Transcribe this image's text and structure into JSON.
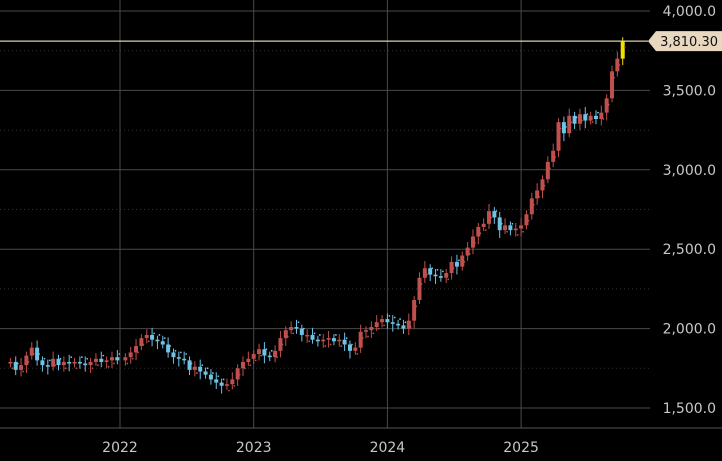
{
  "chart_data": {
    "type": "candlestick",
    "title": "",
    "xlabel": "",
    "ylabel": "",
    "ylim": [
      1400,
      4010
    ],
    "xlim": [
      2021.18,
      2025.93
    ],
    "grid": true,
    "y_axis_position": "right",
    "y_ticks": [
      1500,
      2000,
      2500,
      3000,
      3500,
      4000
    ],
    "y_tick_labels": [
      "1,500.0",
      "2,000.0",
      "2,500.0",
      "3,000.0",
      "3,500.0",
      "4,000.0"
    ],
    "x_ticks": [
      2022,
      2023,
      2024,
      2025
    ],
    "x_tick_labels": [
      "2022",
      "2023",
      "2024",
      "2025"
    ],
    "last_price": 3810.3,
    "last_price_label": "3,810.30",
    "colors": {
      "background": "#000000",
      "up": "#c0504d",
      "down": "#6fc3e6",
      "grid": "#4a4a4a",
      "last_price_line": "#d9d2a0",
      "last_price_tag": "#e8d8bf",
      "last_candle": "#f0e000",
      "axis_text": "#c8c8c8"
    },
    "series": [
      {
        "values": [
          [
            2021.18,
            1790
          ],
          [
            2021.22,
            1740
          ],
          [
            2021.26,
            1770
          ],
          [
            2021.3,
            1830
          ],
          [
            2021.34,
            1880
          ],
          [
            2021.38,
            1800
          ],
          [
            2021.42,
            1770
          ],
          [
            2021.46,
            1760
          ],
          [
            2021.5,
            1810
          ],
          [
            2021.54,
            1770
          ],
          [
            2021.58,
            1790
          ],
          [
            2021.62,
            1780
          ],
          [
            2021.66,
            1790
          ],
          [
            2021.7,
            1780
          ],
          [
            2021.74,
            1770
          ],
          [
            2021.78,
            1790
          ],
          [
            2021.82,
            1810
          ],
          [
            2021.86,
            1790
          ],
          [
            2021.9,
            1800
          ],
          [
            2021.94,
            1820
          ],
          [
            2021.98,
            1800
          ],
          [
            2022.04,
            1820
          ],
          [
            2022.08,
            1850
          ],
          [
            2022.12,
            1890
          ],
          [
            2022.16,
            1940
          ],
          [
            2022.2,
            1960
          ],
          [
            2022.24,
            1930
          ],
          [
            2022.28,
            1920
          ],
          [
            2022.32,
            1900
          ],
          [
            2022.36,
            1850
          ],
          [
            2022.4,
            1820
          ],
          [
            2022.44,
            1810
          ],
          [
            2022.48,
            1800
          ],
          [
            2022.52,
            1740
          ],
          [
            2022.56,
            1760
          ],
          [
            2022.6,
            1730
          ],
          [
            2022.64,
            1710
          ],
          [
            2022.68,
            1680
          ],
          [
            2022.72,
            1660
          ],
          [
            2022.76,
            1640
          ],
          [
            2022.8,
            1650
          ],
          [
            2022.84,
            1680
          ],
          [
            2022.88,
            1750
          ],
          [
            2022.92,
            1790
          ],
          [
            2022.96,
            1810
          ],
          [
            2023.0,
            1840
          ],
          [
            2023.04,
            1870
          ],
          [
            2023.08,
            1830
          ],
          [
            2023.12,
            1820
          ],
          [
            2023.16,
            1860
          ],
          [
            2023.2,
            1940
          ],
          [
            2023.24,
            1990
          ],
          [
            2023.28,
            2010
          ],
          [
            2023.32,
            2000
          ],
          [
            2023.36,
            1960
          ],
          [
            2023.4,
            1960
          ],
          [
            2023.44,
            1930
          ],
          [
            2023.48,
            1920
          ],
          [
            2023.52,
            1930
          ],
          [
            2023.56,
            1940
          ],
          [
            2023.6,
            1920
          ],
          [
            2023.64,
            1930
          ],
          [
            2023.68,
            1900
          ],
          [
            2023.72,
            1860
          ],
          [
            2023.76,
            1880
          ],
          [
            2023.8,
            1980
          ],
          [
            2023.84,
            1990
          ],
          [
            2023.88,
            2010
          ],
          [
            2023.92,
            2040
          ],
          [
            2023.96,
            2060
          ],
          [
            2024.0,
            2040
          ],
          [
            2024.04,
            2030
          ],
          [
            2024.08,
            2020
          ],
          [
            2024.12,
            2000
          ],
          [
            2024.16,
            2050
          ],
          [
            2024.2,
            2180
          ],
          [
            2024.24,
            2320
          ],
          [
            2024.28,
            2380
          ],
          [
            2024.32,
            2340
          ],
          [
            2024.36,
            2330
          ],
          [
            2024.4,
            2320
          ],
          [
            2024.44,
            2350
          ],
          [
            2024.48,
            2420
          ],
          [
            2024.52,
            2390
          ],
          [
            2024.56,
            2460
          ],
          [
            2024.6,
            2510
          ],
          [
            2024.64,
            2580
          ],
          [
            2024.68,
            2640
          ],
          [
            2024.72,
            2660
          ],
          [
            2024.76,
            2740
          ],
          [
            2024.8,
            2700
          ],
          [
            2024.84,
            2620
          ],
          [
            2024.88,
            2650
          ],
          [
            2024.92,
            2620
          ],
          [
            2024.96,
            2630
          ],
          [
            2025.0,
            2650
          ],
          [
            2025.04,
            2720
          ],
          [
            2025.08,
            2820
          ],
          [
            2025.12,
            2870
          ],
          [
            2025.16,
            2940
          ],
          [
            2025.2,
            3050
          ],
          [
            2025.24,
            3120
          ],
          [
            2025.28,
            3300
          ],
          [
            2025.32,
            3230
          ],
          [
            2025.36,
            3340
          ],
          [
            2025.4,
            3290
          ],
          [
            2025.44,
            3350
          ],
          [
            2025.48,
            3310
          ],
          [
            2025.52,
            3340
          ],
          [
            2025.56,
            3320
          ],
          [
            2025.6,
            3360
          ],
          [
            2025.64,
            3450
          ],
          [
            2025.68,
            3620
          ],
          [
            2025.72,
            3700
          ],
          [
            2025.76,
            3810
          ]
        ]
      }
    ]
  }
}
